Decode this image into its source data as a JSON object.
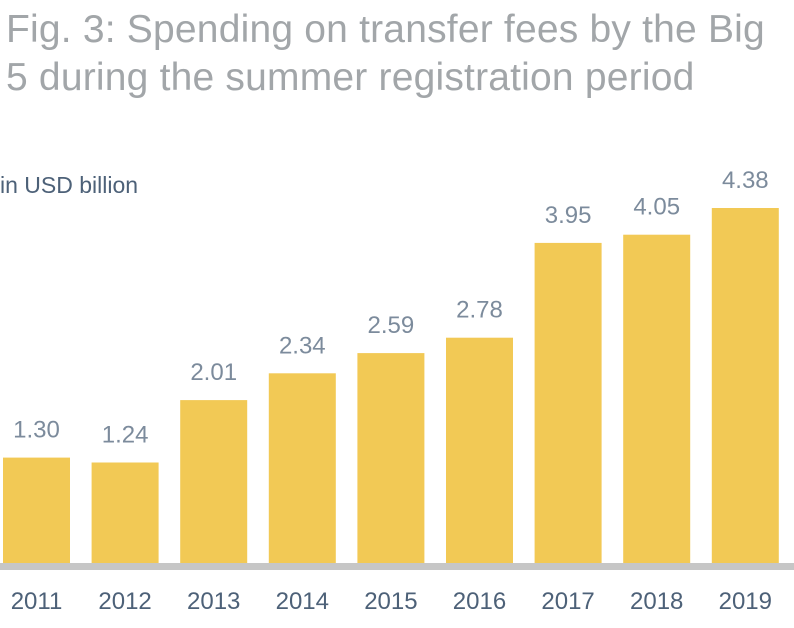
{
  "chart_data": {
    "type": "bar",
    "title": "Fig. 3: Spending on transfer fees by the Big 5 during the summer registration period",
    "unit_label": "in USD billion",
    "xlabel": "",
    "ylabel": "",
    "categories": [
      "2011",
      "2012",
      "2013",
      "2014",
      "2015",
      "2016",
      "2017",
      "2018",
      "2019"
    ],
    "values": [
      1.3,
      1.24,
      2.01,
      2.34,
      2.59,
      2.78,
      3.95,
      4.05,
      4.38
    ],
    "value_labels": [
      "1.30",
      "1.24",
      "2.01",
      "2.34",
      "2.59",
      "2.78",
      "3.95",
      "4.05",
      "4.38"
    ],
    "ylim": [
      0,
      4.38
    ],
    "grid": false,
    "legend": "none",
    "colors": {
      "bar": "#f2c955",
      "baseline": "#c6c6c6",
      "title": "#a2a6a9",
      "value_labels": "#7c8b9c",
      "axis_text": "#4d6178"
    }
  }
}
